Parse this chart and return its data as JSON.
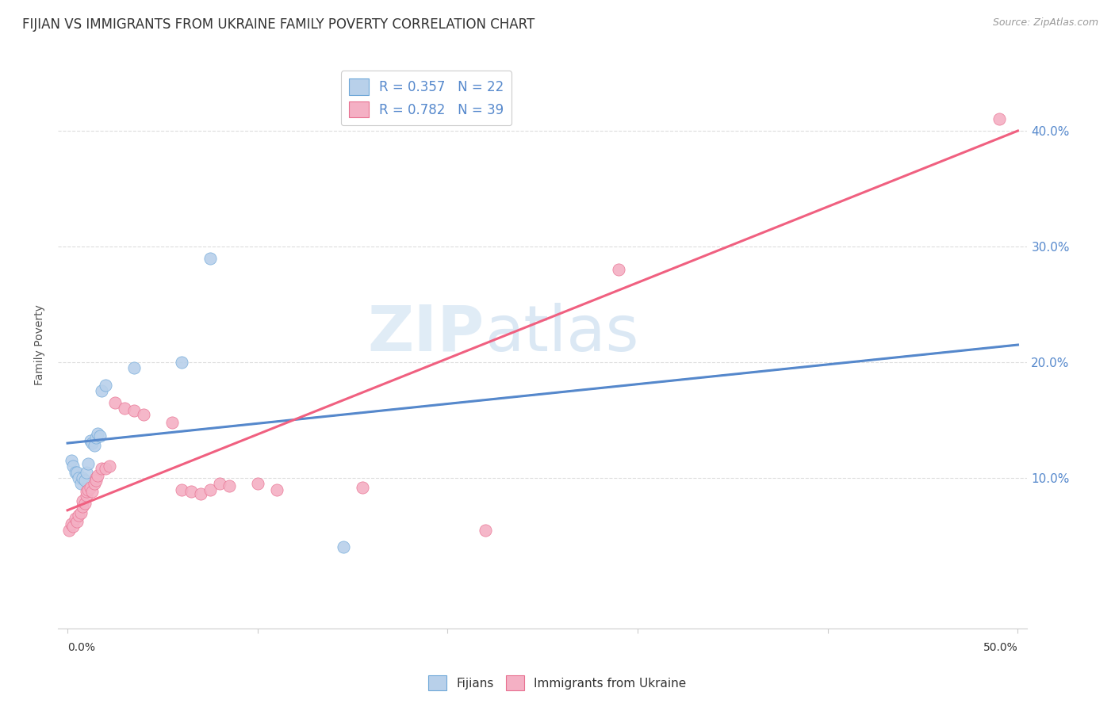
{
  "title": "FIJIAN VS IMMIGRANTS FROM UKRAINE FAMILY POVERTY CORRELATION CHART",
  "source": "Source: ZipAtlas.com",
  "ylabel": "Family Poverty",
  "right_yticks": [
    "10.0%",
    "20.0%",
    "30.0%",
    "40.0%"
  ],
  "right_ytick_vals": [
    0.1,
    0.2,
    0.3,
    0.4
  ],
  "xlim": [
    -0.005,
    0.505
  ],
  "ylim": [
    -0.03,
    0.46
  ],
  "legend_line1": "R = 0.357   N = 22",
  "legend_line2": "R = 0.782   N = 39",
  "fijian_fill_color": "#b8d0ea",
  "ukraine_fill_color": "#f4b0c4",
  "fijian_edge_color": "#6fa8d8",
  "ukraine_edge_color": "#e87090",
  "fijian_line_color": "#5588cc",
  "ukraine_line_color": "#f06080",
  "grid_color": "#dddddd",
  "background_color": "#ffffff",
  "title_fontsize": 12,
  "axis_label_fontsize": 10,
  "tick_fontsize": 10,
  "fijian_scatter": [
    [
      0.002,
      0.115
    ],
    [
      0.003,
      0.11
    ],
    [
      0.004,
      0.105
    ],
    [
      0.005,
      0.105
    ],
    [
      0.006,
      0.1
    ],
    [
      0.007,
      0.095
    ],
    [
      0.008,
      0.1
    ],
    [
      0.009,
      0.098
    ],
    [
      0.01,
      0.105
    ],
    [
      0.011,
      0.112
    ],
    [
      0.012,
      0.132
    ],
    [
      0.013,
      0.13
    ],
    [
      0.014,
      0.128
    ],
    [
      0.015,
      0.135
    ],
    [
      0.016,
      0.138
    ],
    [
      0.017,
      0.136
    ],
    [
      0.018,
      0.175
    ],
    [
      0.02,
      0.18
    ],
    [
      0.035,
      0.195
    ],
    [
      0.06,
      0.2
    ],
    [
      0.075,
      0.29
    ],
    [
      0.145,
      0.04
    ]
  ],
  "ukraine_scatter": [
    [
      0.001,
      0.055
    ],
    [
      0.002,
      0.06
    ],
    [
      0.003,
      0.058
    ],
    [
      0.004,
      0.065
    ],
    [
      0.005,
      0.062
    ],
    [
      0.006,
      0.068
    ],
    [
      0.007,
      0.07
    ],
    [
      0.008,
      0.075
    ],
    [
      0.008,
      0.08
    ],
    [
      0.009,
      0.078
    ],
    [
      0.01,
      0.085
    ],
    [
      0.01,
      0.088
    ],
    [
      0.011,
      0.09
    ],
    [
      0.012,
      0.092
    ],
    [
      0.013,
      0.088
    ],
    [
      0.014,
      0.095
    ],
    [
      0.015,
      0.1
    ],
    [
      0.015,
      0.098
    ],
    [
      0.016,
      0.102
    ],
    [
      0.018,
      0.108
    ],
    [
      0.02,
      0.108
    ],
    [
      0.022,
      0.11
    ],
    [
      0.025,
      0.165
    ],
    [
      0.03,
      0.16
    ],
    [
      0.035,
      0.158
    ],
    [
      0.04,
      0.155
    ],
    [
      0.055,
      0.148
    ],
    [
      0.06,
      0.09
    ],
    [
      0.065,
      0.088
    ],
    [
      0.07,
      0.086
    ],
    [
      0.075,
      0.09
    ],
    [
      0.08,
      0.095
    ],
    [
      0.085,
      0.093
    ],
    [
      0.1,
      0.095
    ],
    [
      0.11,
      0.09
    ],
    [
      0.155,
      0.092
    ],
    [
      0.22,
      0.055
    ],
    [
      0.29,
      0.28
    ],
    [
      0.49,
      0.41
    ]
  ],
  "fijian_line_y0": 0.13,
  "fijian_line_y1": 0.215,
  "ukraine_line_y0": 0.072,
  "ukraine_line_y1": 0.4
}
